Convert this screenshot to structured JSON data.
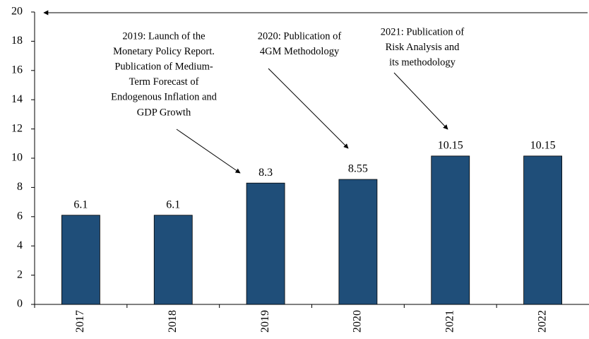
{
  "chart_data": {
    "type": "bar",
    "categories": [
      "2017",
      "2018",
      "2019",
      "2020",
      "2021",
      "2022"
    ],
    "values": [
      6.1,
      6.1,
      8.3,
      8.55,
      10.15,
      10.15
    ],
    "color": "#1f4e79",
    "ylim": [
      0,
      20
    ],
    "yticks": [
      0,
      2,
      4,
      6,
      8,
      10,
      12,
      14,
      16,
      18,
      20
    ],
    "grid": false,
    "annotations": [
      {
        "lines": [
          "2019: Launch of the",
          "Monetary Policy Report.",
          "Publication of Medium-",
          "Term Forecast of",
          "Endogenous Inflation and",
          "GDP Growth"
        ]
      },
      {
        "lines": [
          "2020: Publication of",
          "4GM Methodology"
        ]
      },
      {
        "lines": [
          "2021: Publication of",
          "Risk Analysis and",
          "its methodology"
        ]
      }
    ]
  }
}
